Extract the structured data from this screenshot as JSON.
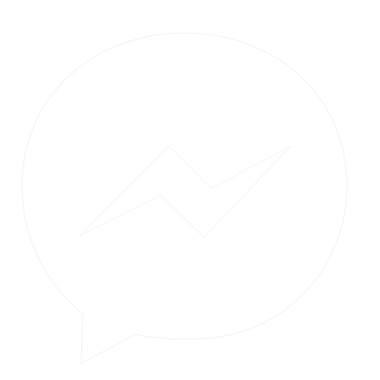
{
  "icon": {
    "name": "messenger-icon",
    "bubble_color": "#ffffff",
    "bolt_color": "#ffffff",
    "outline_color": "#eef3f8"
  },
  "colors": {
    "background": "#ffffff"
  }
}
